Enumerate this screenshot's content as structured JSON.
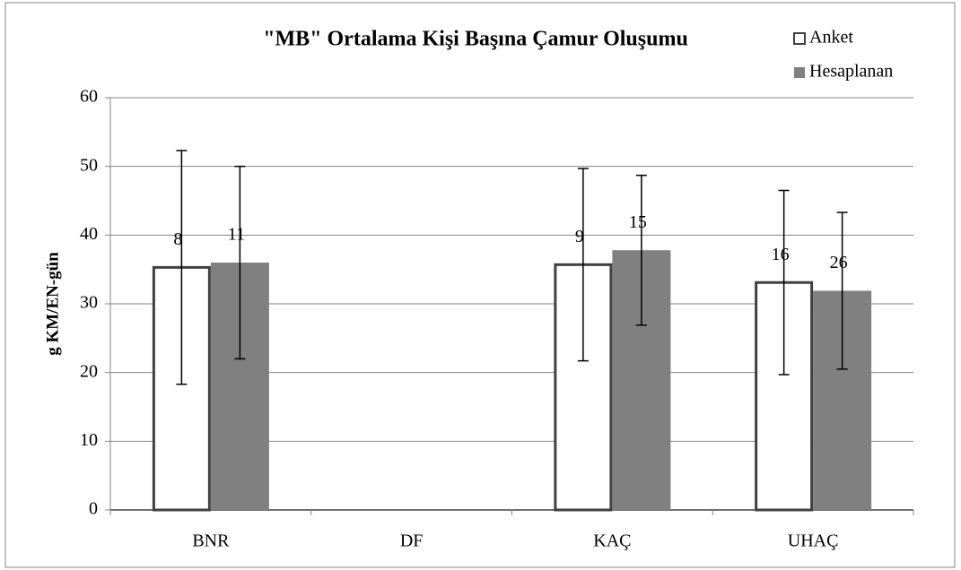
{
  "chart_data": {
    "type": "bar",
    "title": "\"MB\" Ortalama Kişi Başına Çamur Oluşumu",
    "y_label": "g KM/EN-gün",
    "categories": [
      "BNR",
      "DF",
      "KAÇ",
      "UHAÇ"
    ],
    "series": [
      {
        "name": "Anket",
        "color": "#ffffff",
        "edgecolor": "#404040",
        "values": [
          35.3,
          null,
          35.7,
          33.1
        ],
        "errors": [
          17,
          null,
          14,
          13.4
        ],
        "counts": [
          8,
          null,
          9,
          16
        ]
      },
      {
        "name": "Hesaplanan",
        "color": "#808080",
        "values": [
          36,
          null,
          37.8,
          31.9
        ],
        "errors": [
          14,
          null,
          10.9,
          11.4
        ],
        "counts": [
          11,
          null,
          15,
          26
        ]
      }
    ],
    "ylim": [
      0,
      60
    ],
    "yticks": [
      0,
      10,
      20,
      30,
      40,
      50,
      60
    ],
    "grid": true,
    "legend": "upper right"
  }
}
